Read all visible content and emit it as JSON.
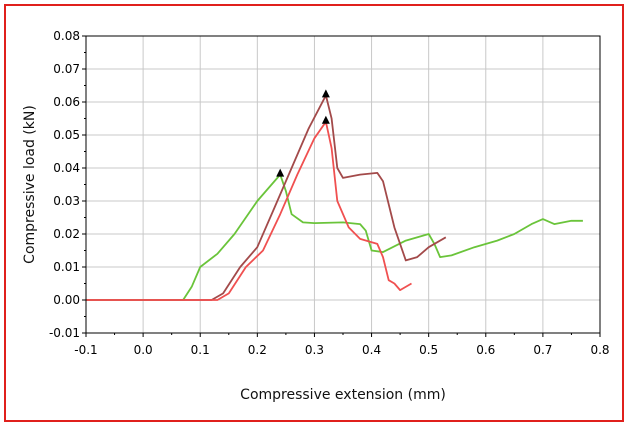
{
  "chart_data": {
    "type": "line",
    "title": "",
    "xlabel": "Compressive extension (mm)",
    "ylabel": "Compressive load  (kN)",
    "xlim": [
      -0.1,
      0.8
    ],
    "ylim": [
      -0.01,
      0.08
    ],
    "xticks": [
      "-0.1",
      "0.0",
      "0.1",
      "0.2",
      "0.3",
      "0.4",
      "0.5",
      "0.6",
      "0.7",
      "0.8"
    ],
    "yticks": [
      "-0.01",
      "0.00",
      "0.01",
      "0.02",
      "0.03",
      "0.04",
      "0.05",
      "0.06",
      "0.07",
      "0.08"
    ],
    "grid": true,
    "frame_color": "#e0201c",
    "series": [
      {
        "color": "#6ac43a",
        "peak": [
          0.24,
          0.038
        ],
        "points": [
          [
            -0.1,
            0.0
          ],
          [
            0.0,
            0.0
          ],
          [
            0.07,
            0.0
          ],
          [
            0.085,
            0.004
          ],
          [
            0.1,
            0.01
          ],
          [
            0.13,
            0.014
          ],
          [
            0.16,
            0.02
          ],
          [
            0.2,
            0.03
          ],
          [
            0.24,
            0.038
          ],
          [
            0.25,
            0.033
          ],
          [
            0.26,
            0.026
          ],
          [
            0.28,
            0.0235
          ],
          [
            0.3,
            0.0233
          ],
          [
            0.35,
            0.0235
          ],
          [
            0.38,
            0.023
          ],
          [
            0.39,
            0.021
          ],
          [
            0.4,
            0.015
          ],
          [
            0.42,
            0.0145
          ],
          [
            0.46,
            0.018
          ],
          [
            0.5,
            0.02
          ],
          [
            0.51,
            0.017
          ],
          [
            0.52,
            0.013
          ],
          [
            0.54,
            0.0135
          ],
          [
            0.58,
            0.016
          ],
          [
            0.62,
            0.018
          ],
          [
            0.65,
            0.02
          ],
          [
            0.68,
            0.023
          ],
          [
            0.7,
            0.0245
          ],
          [
            0.72,
            0.023
          ],
          [
            0.75,
            0.024
          ],
          [
            0.77,
            0.024
          ]
        ]
      },
      {
        "color": "#a34a4a",
        "peak": [
          0.32,
          0.062
        ],
        "points": [
          [
            -0.1,
            0.0
          ],
          [
            0.0,
            0.0
          ],
          [
            0.12,
            0.0
          ],
          [
            0.14,
            0.002
          ],
          [
            0.17,
            0.01
          ],
          [
            0.2,
            0.016
          ],
          [
            0.23,
            0.028
          ],
          [
            0.26,
            0.04
          ],
          [
            0.29,
            0.052
          ],
          [
            0.32,
            0.062
          ],
          [
            0.33,
            0.055
          ],
          [
            0.34,
            0.04
          ],
          [
            0.35,
            0.037
          ],
          [
            0.38,
            0.038
          ],
          [
            0.41,
            0.0385
          ],
          [
            0.42,
            0.036
          ],
          [
            0.44,
            0.022
          ],
          [
            0.46,
            0.012
          ],
          [
            0.48,
            0.013
          ],
          [
            0.5,
            0.016
          ],
          [
            0.53,
            0.019
          ]
        ]
      },
      {
        "color": "#f05050",
        "peak": [
          0.32,
          0.054
        ],
        "points": [
          [
            -0.1,
            0.0
          ],
          [
            0.0,
            0.0
          ],
          [
            0.13,
            0.0
          ],
          [
            0.15,
            0.002
          ],
          [
            0.18,
            0.01
          ],
          [
            0.21,
            0.015
          ],
          [
            0.24,
            0.026
          ],
          [
            0.27,
            0.038
          ],
          [
            0.3,
            0.049
          ],
          [
            0.32,
            0.054
          ],
          [
            0.33,
            0.046
          ],
          [
            0.34,
            0.03
          ],
          [
            0.36,
            0.022
          ],
          [
            0.38,
            0.0185
          ],
          [
            0.41,
            0.017
          ],
          [
            0.42,
            0.013
          ],
          [
            0.43,
            0.006
          ],
          [
            0.44,
            0.005
          ],
          [
            0.45,
            0.003
          ],
          [
            0.47,
            0.005
          ]
        ]
      }
    ]
  }
}
